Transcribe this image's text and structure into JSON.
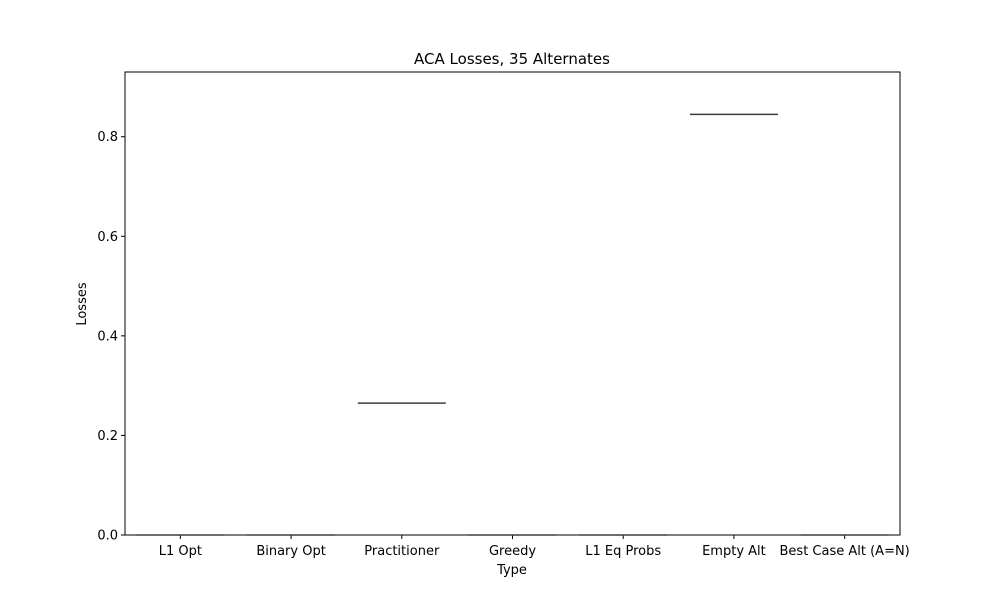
{
  "chart_data": {
    "type": "box",
    "title": "ACA Losses, 35 Alternates",
    "xlabel": "Type",
    "ylabel": "Losses",
    "categories": [
      "L1 Opt",
      "Binary Opt",
      "Practitioner",
      "Greedy",
      "L1 Eq Probs",
      "Empty Alt",
      "Best Case Alt (A=N)"
    ],
    "values": [
      0.0,
      0.0,
      0.265,
      0.0,
      0.0,
      0.845,
      0.0
    ],
    "ylim": [
      0,
      0.93
    ],
    "yticks": [
      0.0,
      0.2,
      0.4,
      0.6,
      0.8
    ],
    "ytick_labels": [
      "0.0",
      "0.2",
      "0.4",
      "0.6",
      "0.8"
    ],
    "grid": false,
    "legend": "none"
  },
  "colors": {
    "median_line": "#3d3d3d",
    "axes": "#000000",
    "background": "#ffffff"
  }
}
